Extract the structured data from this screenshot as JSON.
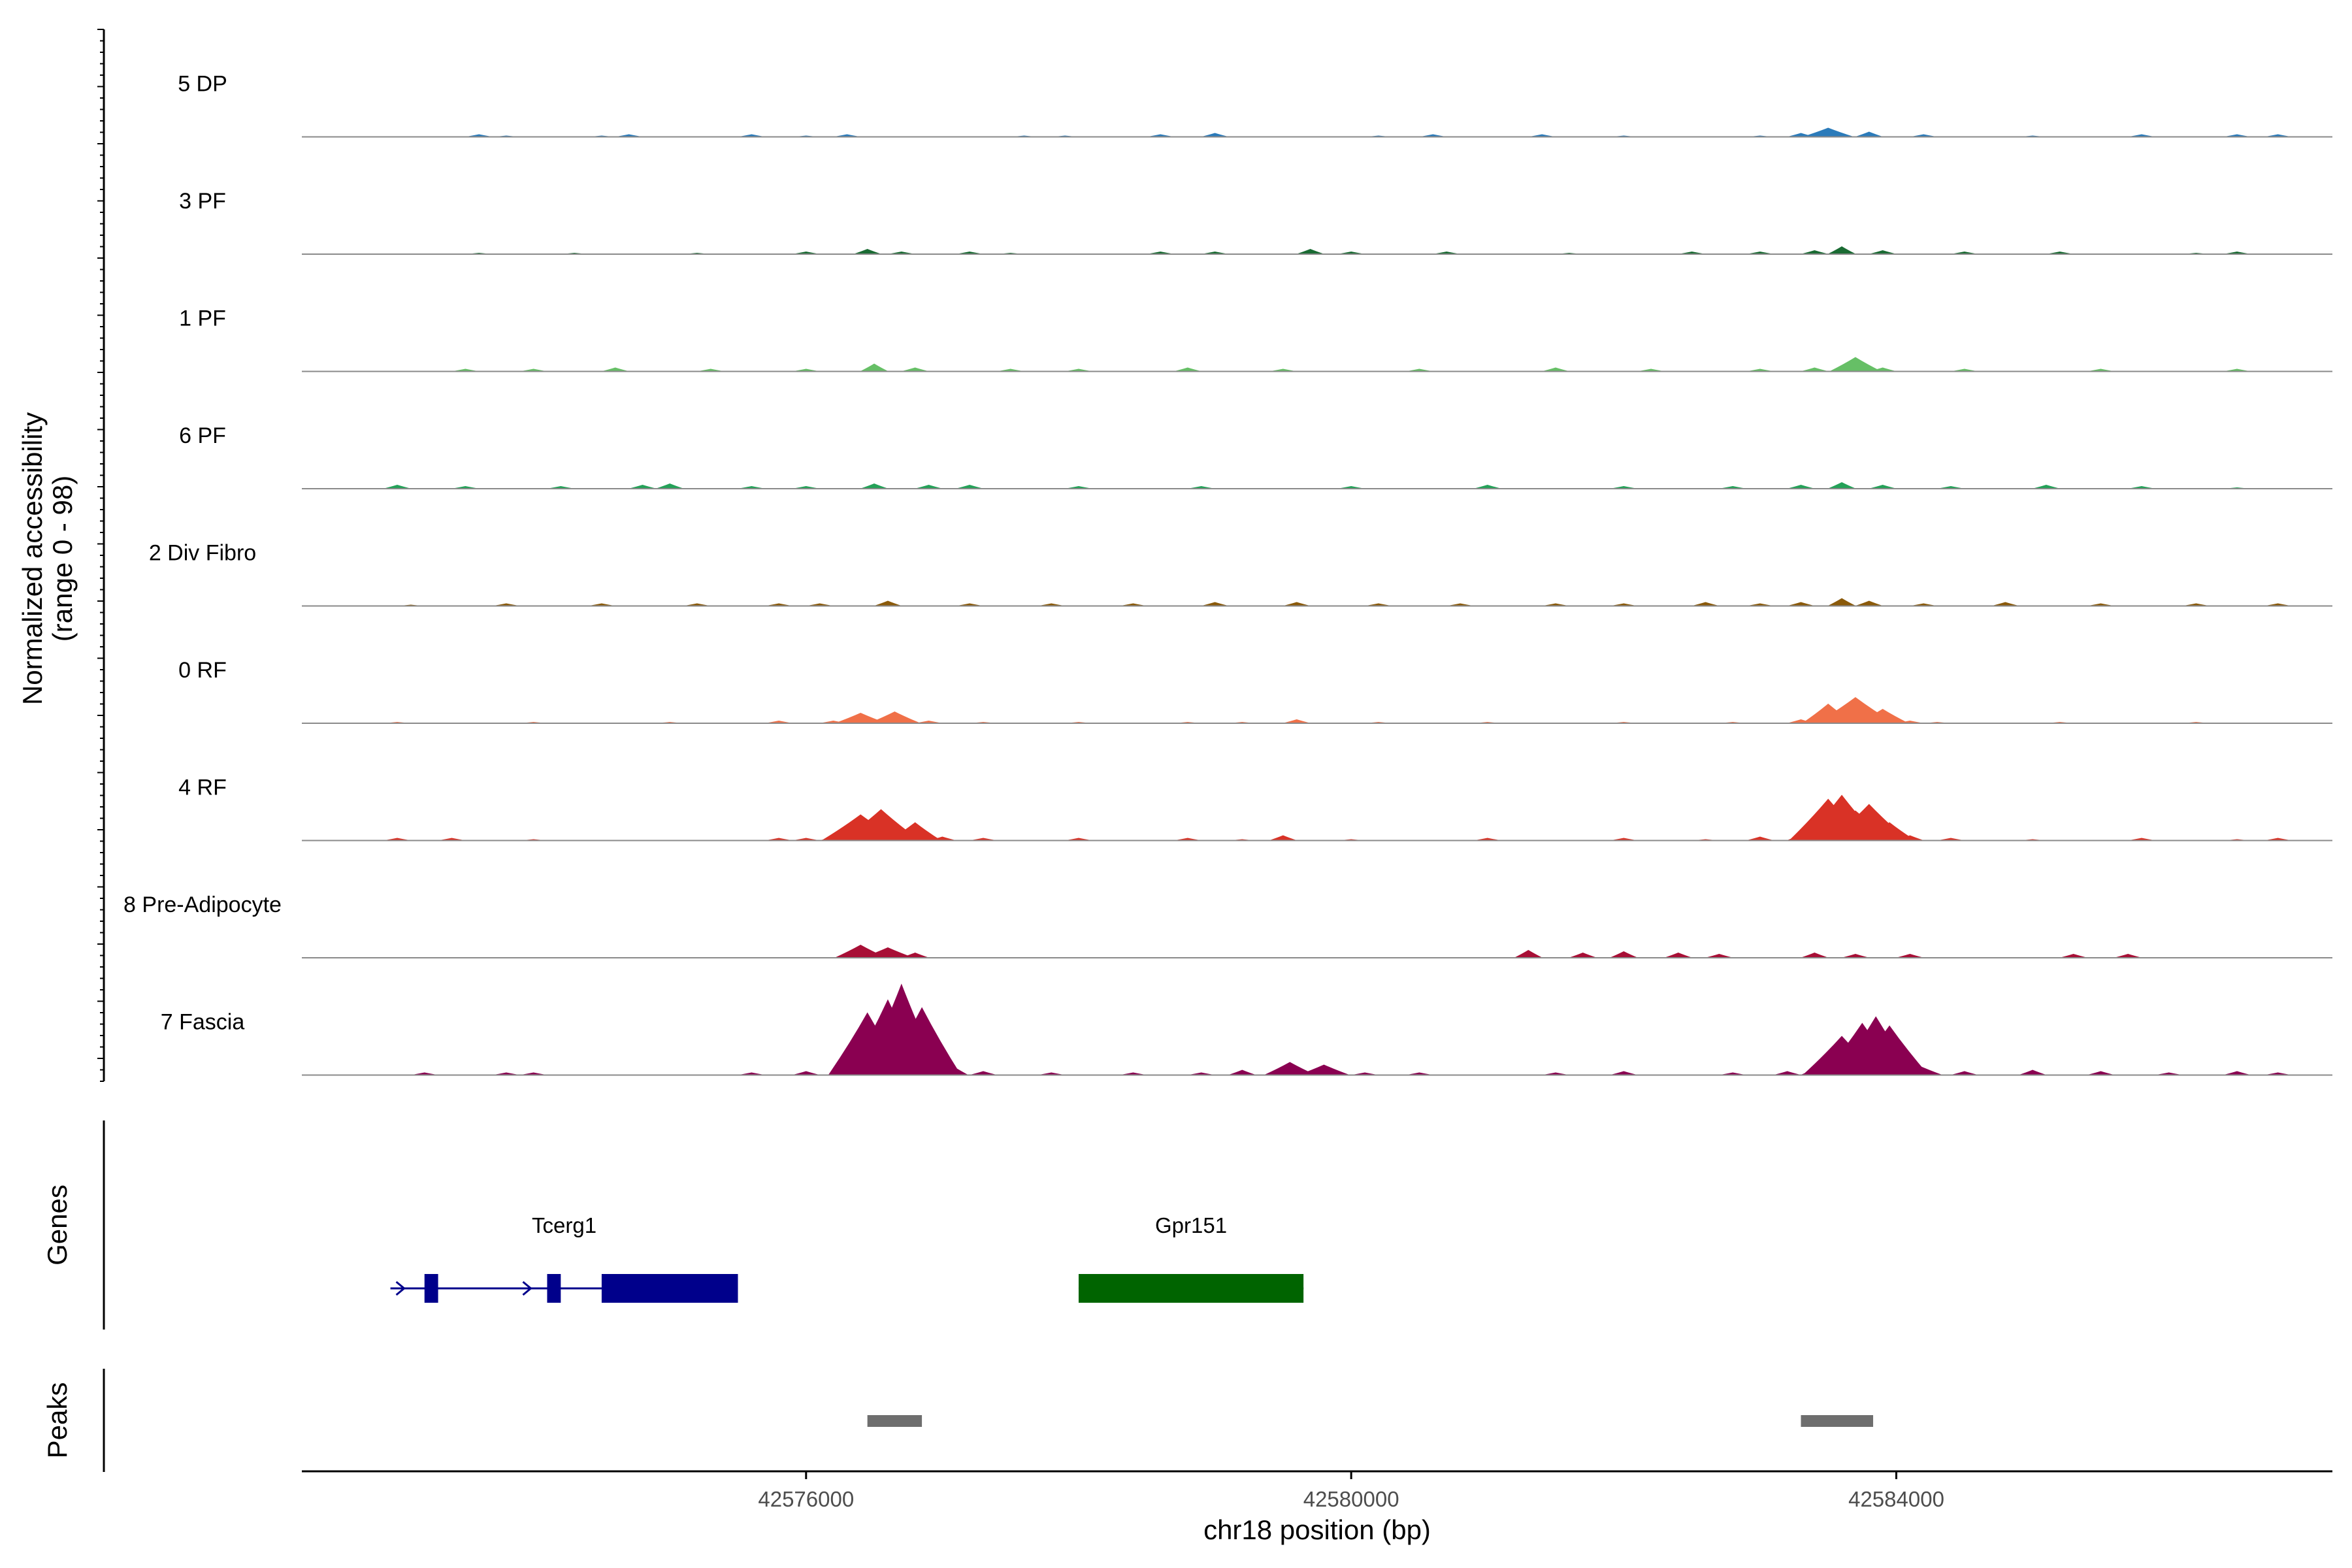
{
  "chart_data": {
    "type": "area",
    "region": {
      "chrom": "chr18",
      "start": 42572300,
      "end": 42587200
    },
    "xlabel": "chr18 position (bp)",
    "x_ticks": [
      42576000,
      42580000,
      42584000
    ],
    "x_tick_labels": [
      "42576000",
      "42580000",
      "42584000"
    ],
    "ylabel": [
      "Normalized accessibility",
      "(range 0 - 98)"
    ],
    "ylim": [
      0,
      98
    ],
    "tracks": [
      {
        "name": "5 DP",
        "color": "#2b7bba",
        "x": [
          42573600,
          42573800,
          42574500,
          42574700,
          42575600,
          42576000,
          42576300,
          42577600,
          42577900,
          42578600,
          42579000,
          42580200,
          42580600,
          42581400,
          42582000,
          42583000,
          42583300,
          42583500,
          42583800,
          42584200,
          42585000,
          42585800,
          42586500,
          42586800
        ],
        "values": [
          2,
          1,
          1,
          2,
          2,
          1,
          2,
          1,
          1,
          2,
          3,
          1,
          2,
          2,
          1,
          1,
          3,
          7,
          4,
          2,
          1,
          2,
          2,
          2
        ]
      },
      {
        "name": "3 PF",
        "color": "#1a6b33",
        "x": [
          42573600,
          42574300,
          42575200,
          42576000,
          42576450,
          42576700,
          42577200,
          42577500,
          42578600,
          42579000,
          42579700,
          42580000,
          42580700,
          42581600,
          42582500,
          42583000,
          42583400,
          42583600,
          42583900,
          42584500,
          42585200,
          42586200,
          42586500
        ],
        "values": [
          1,
          1,
          1,
          2,
          4,
          2,
          2,
          1,
          2,
          2,
          4,
          2,
          2,
          1,
          2,
          2,
          3,
          6,
          3,
          2,
          2,
          1,
          2
        ]
      },
      {
        "name": "1 PF",
        "color": "#66bf66",
        "x": [
          42573500,
          42574000,
          42574600,
          42575300,
          42576000,
          42576500,
          42576800,
          42577500,
          42578000,
          42578800,
          42579500,
          42580500,
          42581500,
          42582200,
          42583000,
          42583400,
          42583700,
          42583900,
          42584500,
          42585500,
          42586500
        ],
        "values": [
          2,
          2,
          3,
          2,
          2,
          6,
          3,
          2,
          2,
          3,
          2,
          2,
          3,
          2,
          2,
          3,
          11,
          3,
          2,
          2,
          2
        ]
      },
      {
        "name": "6 PF",
        "color": "#24a158",
        "x": [
          42573000,
          42573500,
          42574200,
          42574800,
          42575000,
          42575600,
          42576000,
          42576500,
          42576900,
          42577200,
          42578000,
          42578900,
          42580000,
          42581000,
          42582000,
          42582800,
          42583300,
          42583600,
          42583900,
          42584400,
          42585100,
          42585800,
          42586500
        ],
        "values": [
          3,
          2,
          2,
          3,
          4,
          2,
          2,
          4,
          3,
          3,
          2,
          2,
          2,
          3,
          2,
          2,
          3,
          5,
          3,
          2,
          3,
          2,
          1
        ]
      },
      {
        "name": "2 Div Fibro",
        "color": "#8b5a0a",
        "x": [
          42573100,
          42573800,
          42574500,
          42575200,
          42575800,
          42576100,
          42576600,
          42577200,
          42577800,
          42578400,
          42579000,
          42579600,
          42580200,
          42580800,
          42581500,
          42582000,
          42582600,
          42583000,
          42583300,
          42583600,
          42583800,
          42584200,
          42584800,
          42585500,
          42586200,
          42586800
        ],
        "values": [
          1,
          2,
          2,
          2,
          2,
          2,
          4,
          2,
          2,
          2,
          3,
          3,
          2,
          2,
          2,
          2,
          3,
          2,
          3,
          6,
          4,
          2,
          3,
          2,
          2,
          2
        ]
      },
      {
        "name": "0 RF",
        "color": "#f07048",
        "x": [
          42573000,
          42574000,
          42575000,
          42575800,
          42576200,
          42576400,
          42576650,
          42576900,
          42577300,
          42578000,
          42578800,
          42579200,
          42579600,
          42580200,
          42581000,
          42582000,
          42582800,
          42583300,
          42583500,
          42583700,
          42583900,
          42584100,
          42584300,
          42585200,
          42586200
        ],
        "values": [
          1,
          1,
          1,
          2,
          2,
          8,
          9,
          2,
          1,
          1,
          1,
          1,
          3,
          1,
          1,
          1,
          1,
          3,
          15,
          20,
          11,
          2,
          1,
          1,
          1
        ]
      },
      {
        "name": "4 RF",
        "color": "#d93226",
        "x": [
          42573000,
          42573400,
          42574000,
          42575800,
          42576000,
          42576200,
          42576400,
          42576550,
          42576800,
          42577000,
          42577300,
          42578000,
          42578800,
          42579200,
          42579500,
          42580000,
          42581000,
          42582000,
          42582600,
          42583000,
          42583300,
          42583500,
          42583600,
          42583700,
          42583800,
          42583950,
          42584100,
          42584400,
          42585000,
          42585800,
          42586500,
          42586800
        ],
        "values": [
          2,
          2,
          1,
          2,
          2,
          3,
          20,
          24,
          14,
          3,
          2,
          2,
          2,
          1,
          4,
          1,
          2,
          2,
          1,
          3,
          5,
          32,
          35,
          23,
          28,
          14,
          4,
          2,
          1,
          2,
          1,
          2
        ]
      },
      {
        "name": "8 Pre-Adipocyte",
        "color": "#a80f36",
        "x": [
          42576400,
          42576600,
          42576800,
          42581300,
          42581700,
          42582000,
          42582400,
          42582700,
          42583400,
          42583700,
          42584100,
          42585300,
          42585700
        ],
        "values": [
          10,
          8,
          4,
          6,
          4,
          5,
          4,
          3,
          4,
          3,
          3,
          3,
          3
        ]
      },
      {
        "name": "7 Fascia",
        "color": "#8a0051",
        "x": [
          42573200,
          42573800,
          42574000,
          42575600,
          42576000,
          42576300,
          42576450,
          42576600,
          42576700,
          42576850,
          42577000,
          42577300,
          42577800,
          42578400,
          42578900,
          42579200,
          42579550,
          42579800,
          42580100,
          42580500,
          42581500,
          42582000,
          42582800,
          42583200,
          42583400,
          42583600,
          42583750,
          42583850,
          42583950,
          42584150,
          42584500,
          42585000,
          42585500,
          42586000,
          42586500,
          42586800
        ],
        "values": [
          2,
          2,
          2,
          2,
          3,
          5,
          48,
          58,
          70,
          52,
          12,
          3,
          2,
          2,
          2,
          4,
          10,
          8,
          2,
          2,
          2,
          3,
          2,
          3,
          5,
          30,
          40,
          45,
          38,
          8,
          3,
          4,
          3,
          2,
          3,
          2
        ]
      }
    ],
    "genes_label": "Genes",
    "genes": [
      {
        "name": "Tcerg1",
        "color": "#00008b",
        "start": 42572950,
        "end": 42575500,
        "exons": [
          [
            42573200,
            42573300
          ],
          [
            42574100,
            42574200
          ],
          [
            42574500,
            42575500
          ]
        ],
        "thick_start": 42574500
      },
      {
        "name": "Gpr151",
        "color": "#006400",
        "start": 42578000,
        "end": 42579650,
        "exons": [
          [
            42578000,
            42579650
          ]
        ],
        "thick_start": 42578000
      }
    ],
    "peaks_label": "Peaks",
    "peaks": [
      [
        42576450,
        42576850
      ],
      [
        42583300,
        42583830
      ]
    ],
    "peak_color": "#6e6e6e"
  }
}
